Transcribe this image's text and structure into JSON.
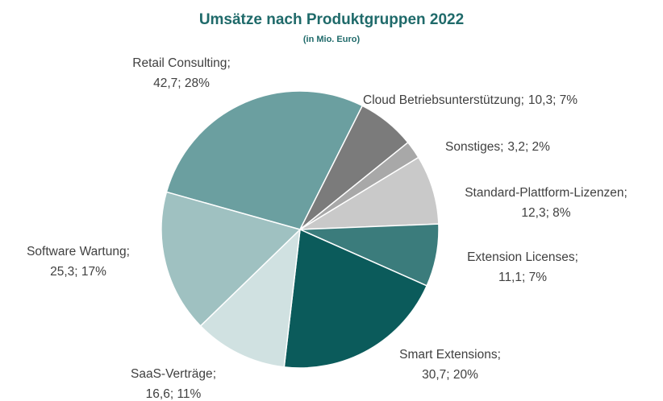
{
  "chart_data": {
    "type": "pie",
    "title": "Umsätze nach Produktgruppen 2022",
    "subtitle": "(in Mio. Euro)",
    "categories": [
      "Retail Consulting",
      "Cloud Betriebsunterstützung",
      "Sonstiges",
      "Standard-Plattform-Lizenzen",
      "Extension Licenses",
      "Smart Extensions",
      "SaaS-Verträge",
      "Software Wartung"
    ],
    "values": [
      42.7,
      10.3,
      3.2,
      12.3,
      11.1,
      30.7,
      16.6,
      25.3
    ],
    "value_labels": [
      "42,7; 28%",
      "10,3; 7%",
      "3,2; 2%",
      "12,3; 8%",
      "11,1; 7%",
      "30,7; 20%",
      "16,6; 11%",
      "25,3; 17%"
    ],
    "label_separator": ";",
    "colors": [
      "#6b9fa0",
      "#7b7b7b",
      "#a8a8a8",
      "#c9c9c9",
      "#3b7c7c",
      "#0b5b5b",
      "#d0e1e1",
      "#9fc1c1"
    ]
  }
}
